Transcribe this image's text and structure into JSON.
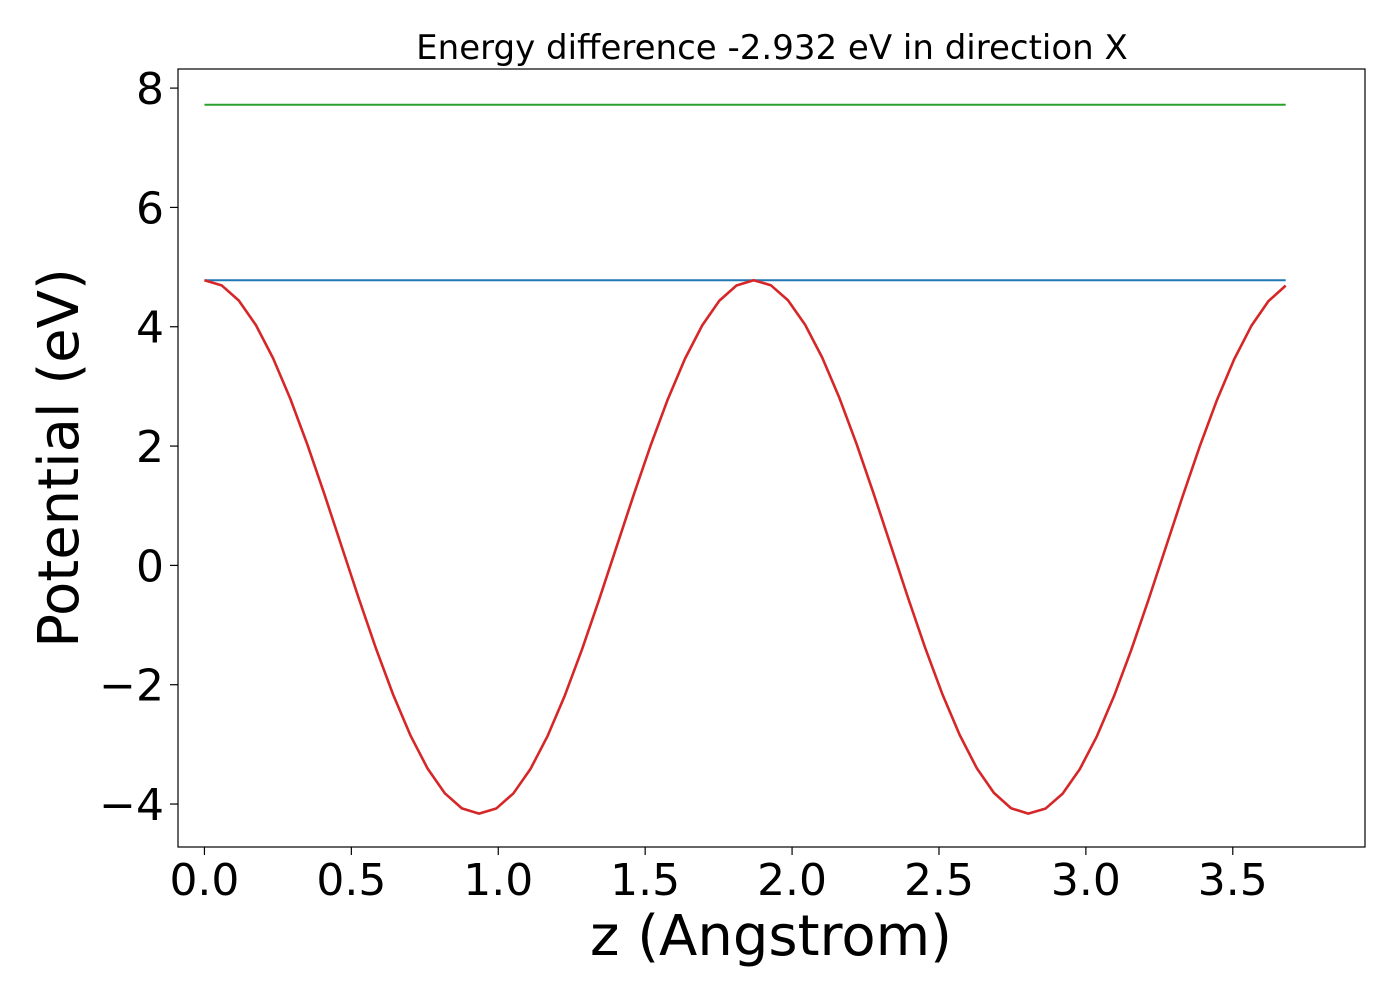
{
  "chart_data": {
    "type": "line",
    "title": "Energy difference -2.932 eV in direction X",
    "xlabel": "z (Angstrom)",
    "ylabel": "Potential (eV)",
    "xlim": [
      -0.09,
      3.95
    ],
    "ylim": [
      -4.72,
      8.32
    ],
    "xticks": [
      0.0,
      0.5,
      1.0,
      1.5,
      2.0,
      2.5,
      3.0,
      3.5
    ],
    "xtick_labels": [
      "0.0",
      "0.5",
      "1.0",
      "1.5",
      "2.0",
      "2.5",
      "3.0",
      "3.5"
    ],
    "yticks": [
      -4,
      -2,
      0,
      2,
      4,
      6,
      8
    ],
    "ytick_labels": [
      "−4",
      "−2",
      "0",
      "2",
      "4",
      "6",
      "8"
    ],
    "grid": false,
    "legend": "none",
    "series": [
      {
        "color": "#2ca02c",
        "style": "flat",
        "x": [
          0.0,
          3.68
        ],
        "y": [
          7.72,
          7.72
        ]
      },
      {
        "color": "#1f77b4",
        "style": "flat",
        "x": [
          0.0,
          3.68
        ],
        "y": [
          4.78,
          4.78
        ]
      },
      {
        "color": "#d62728",
        "style": "cosine",
        "period": 1.87,
        "mean": 0.31,
        "amplitude": 4.47,
        "points": 64,
        "x_range": [
          0.0,
          3.68
        ]
      }
    ]
  }
}
